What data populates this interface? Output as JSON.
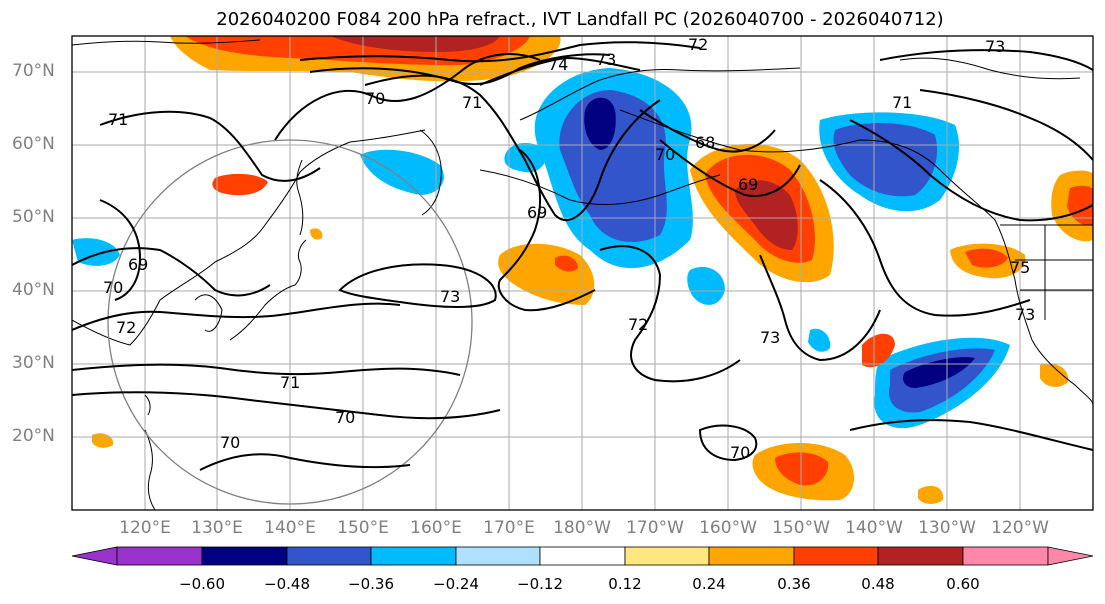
{
  "title": "2026040200 F084 200 hPa refract., IVT Landfall PC (2026040700 - 2026040712)",
  "latitude_labels": [
    "70°N",
    "60°N",
    "50°N",
    "40°N",
    "30°N",
    "20°N"
  ],
  "longitude_labels": [
    "120°E",
    "130°E",
    "140°E",
    "150°E",
    "160°E",
    "170°E",
    "180°W",
    "170°W",
    "160°W",
    "150°W",
    "140°W",
    "130°W",
    "120°W"
  ],
  "contour_labels": [
    "73",
    "72",
    "74",
    "73",
    "71",
    "70",
    "71",
    "70",
    "68",
    "69",
    "71",
    "69",
    "69",
    "70",
    "72",
    "73",
    "72",
    "73",
    "71",
    "70",
    "70",
    "70",
    "73",
    "75"
  ],
  "colorbar": {
    "tick_labels": [
      "−0.60",
      "−0.48",
      "−0.36",
      "−0.24",
      "−0.12",
      "0.12",
      "0.24",
      "0.36",
      "0.48",
      "0.60"
    ],
    "colors": [
      "#9933cc",
      "#000080",
      "#3355cc",
      "#00bbff",
      "#b0e0ff",
      "#ffffff",
      "#ffe680",
      "#ffa500",
      "#ff4000",
      "#b22222",
      "#ff88aa"
    ]
  },
  "colors": {
    "contour": "#000000",
    "coastline": "#000000",
    "grid": "#aaaaaa",
    "range_ring": "#808080"
  }
}
